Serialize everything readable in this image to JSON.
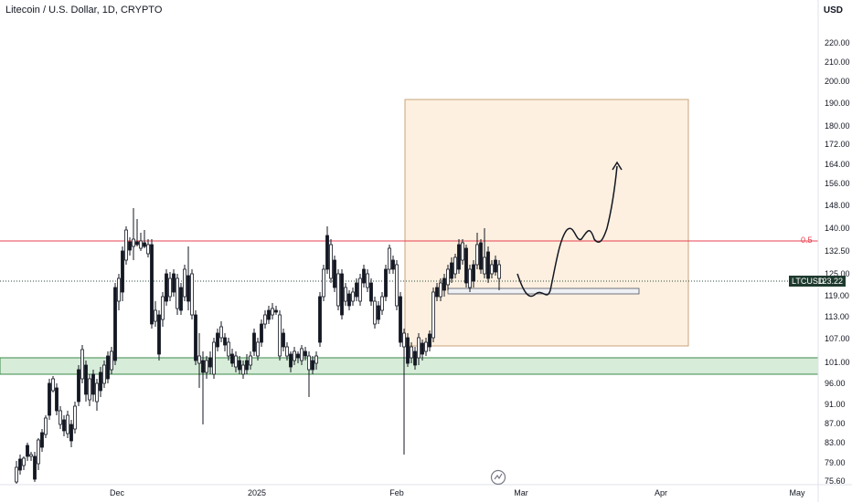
{
  "header": {
    "title": "Litecoin / U.S. Dollar, 1D, CRYPTO",
    "currency": "USD"
  },
  "price_axis": {
    "ticks": [
      "220.00",
      "210.00",
      "200.00",
      "190.00",
      "180.00",
      "172.00",
      "164.00",
      "156.00",
      "148.00",
      "140.00",
      "132.50",
      "125.00",
      "119.00",
      "113.00",
      "107.00",
      "101.00",
      "96.00",
      "91.00",
      "87.00",
      "83.00",
      "79.00",
      "75.60"
    ]
  },
  "time_axis": {
    "ticks": [
      "Dec",
      "2025",
      "Feb",
      "Mar",
      "Apr",
      "May"
    ]
  },
  "last_price": {
    "symbol": "LTCUSD",
    "value": "123.22",
    "color": "#1e3a2e"
  },
  "fib_level": {
    "label": "0.5",
    "color": "#e8414f"
  },
  "colors": {
    "up": "#ffffff",
    "down": "#131722",
    "support_zone": "#d7ecd9",
    "support_border": "#3c8a4a",
    "target_box": "#fdf0e0",
    "target_border": "#c9a37c"
  },
  "icons": {
    "logo": "tradingview-logo-icon",
    "arrow": "projection-arrow-icon"
  }
}
